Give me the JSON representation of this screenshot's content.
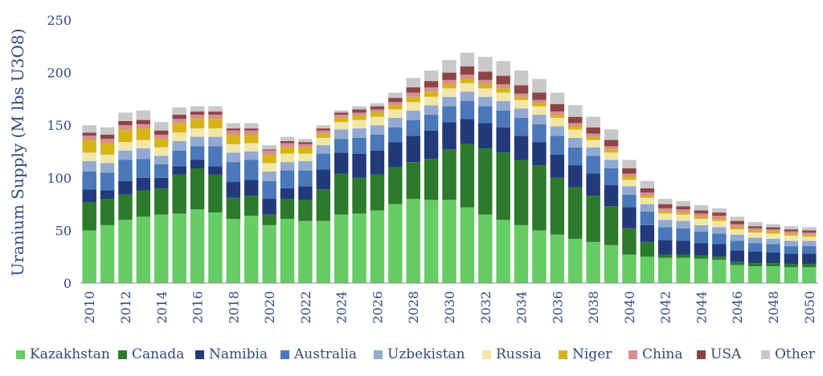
{
  "chart_data": {
    "type": "bar",
    "stacked": true,
    "title": "",
    "xlabel": "",
    "ylabel": "Uranium Supply (M lbs U3O8)",
    "ylim": [
      0,
      250
    ],
    "yticks": [
      "0",
      "50",
      "100",
      "150",
      "200",
      "250"
    ],
    "grid": false,
    "legend_position": "bottom",
    "categories": [
      "2010",
      "2011",
      "2012",
      "2013",
      "2014",
      "2015",
      "2016",
      "2017",
      "2018",
      "2019",
      "2020",
      "2021",
      "2022",
      "2023",
      "2024",
      "2025",
      "2026",
      "2027",
      "2028",
      "2029",
      "2030",
      "2031",
      "2032",
      "2033",
      "2034",
      "2035",
      "2036",
      "2037",
      "2038",
      "2039",
      "2040",
      "2041",
      "2042",
      "2043",
      "2044",
      "2045",
      "2046",
      "2047",
      "2048",
      "2049",
      "2050"
    ],
    "xtick_labels": [
      "2010",
      "2012",
      "2014",
      "2016",
      "2018",
      "2020",
      "2022",
      "2024",
      "2026",
      "2028",
      "2030",
      "2032",
      "2034",
      "2036",
      "2038",
      "2040",
      "2042",
      "2044",
      "2046",
      "2048",
      "2050"
    ],
    "series": [
      {
        "name": "Kazakhstan",
        "color": "#66cc66",
        "values": [
          50,
          55,
          60,
          63,
          65,
          66,
          70,
          67,
          61,
          64,
          55,
          61,
          59,
          59,
          65,
          66,
          69,
          75,
          80,
          79,
          79,
          72,
          65,
          60,
          55,
          50,
          46,
          42,
          39,
          36,
          27,
          25,
          24,
          24,
          23,
          22,
          17,
          16,
          16,
          15,
          15
        ]
      },
      {
        "name": "Canada",
        "color": "#2d7a2d",
        "values": [
          27,
          25,
          24,
          25,
          25,
          37,
          39,
          36,
          20,
          19,
          10,
          19,
          20,
          30,
          39,
          34,
          34,
          35,
          35,
          39,
          48,
          60,
          63,
          64,
          62,
          62,
          54,
          49,
          44,
          37,
          25,
          14,
          3,
          3,
          3,
          3,
          3,
          3,
          3,
          3,
          3
        ]
      },
      {
        "name": "Namibia",
        "color": "#223a7a",
        "values": [
          12,
          8,
          13,
          12,
          10,
          8,
          8,
          8,
          15,
          15,
          15,
          10,
          13,
          19,
          20,
          23,
          23,
          24,
          25,
          27,
          26,
          24,
          24,
          24,
          23,
          22,
          22,
          21,
          21,
          20,
          20,
          16,
          14,
          13,
          12,
          12,
          11,
          11,
          10,
          10,
          10
        ]
      },
      {
        "name": "Australia",
        "color": "#4a78b8",
        "values": [
          17,
          17,
          20,
          18,
          13,
          15,
          13,
          19,
          19,
          19,
          17,
          17,
          15,
          15,
          13,
          15,
          15,
          14,
          15,
          15,
          15,
          17,
          16,
          16,
          17,
          17,
          18,
          17,
          17,
          16,
          12,
          13,
          12,
          12,
          11,
          10,
          9,
          8,
          8,
          7,
          7
        ]
      },
      {
        "name": "Uzbekistan",
        "color": "#92aad0",
        "values": [
          10,
          9,
          9,
          10,
          8,
          9,
          9,
          9,
          9,
          8,
          9,
          8,
          9,
          8,
          9,
          9,
          9,
          9,
          9,
          9,
          9,
          9,
          9,
          9,
          9,
          9,
          9,
          9,
          8,
          8,
          8,
          7,
          7,
          7,
          6,
          6,
          6,
          5,
          5,
          5,
          5
        ]
      },
      {
        "name": "Russia",
        "color": "#f2e6a6",
        "values": [
          8,
          8,
          8,
          8,
          8,
          8,
          8,
          8,
          8,
          8,
          8,
          8,
          7,
          7,
          7,
          8,
          8,
          8,
          8,
          8,
          8,
          8,
          8,
          8,
          8,
          8,
          8,
          8,
          7,
          7,
          6,
          6,
          6,
          6,
          6,
          6,
          5,
          5,
          5,
          5,
          4
        ]
      },
      {
        "name": "Niger",
        "color": "#d6b417",
        "values": [
          12,
          11,
          12,
          11,
          8,
          9,
          9,
          9,
          9,
          8,
          8,
          6,
          6,
          4,
          4,
          4,
          4,
          4,
          5,
          5,
          4,
          4,
          4,
          4,
          3,
          3,
          3,
          3,
          3,
          3,
          3,
          2,
          2,
          2,
          2,
          2,
          2,
          2,
          2,
          2,
          2
        ]
      },
      {
        "name": "China",
        "color": "#d88f8f",
        "values": [
          4,
          4,
          4,
          4,
          4,
          4,
          4,
          4,
          4,
          4,
          4,
          4,
          3,
          3,
          3,
          3,
          3,
          3,
          4,
          4,
          4,
          4,
          4,
          4,
          3,
          3,
          3,
          3,
          3,
          3,
          3,
          3,
          3,
          3,
          3,
          3,
          3,
          2,
          2,
          2,
          2
        ]
      },
      {
        "name": "USA",
        "color": "#8c4545",
        "values": [
          3,
          4,
          4,
          4,
          4,
          4,
          3,
          3,
          2,
          2,
          1,
          2,
          2,
          2,
          2,
          3,
          3,
          4,
          5,
          6,
          7,
          8,
          8,
          8,
          8,
          7,
          7,
          6,
          6,
          6,
          5,
          4,
          4,
          3,
          3,
          3,
          3,
          2,
          2,
          2,
          2
        ]
      },
      {
        "name": "Other",
        "color": "#c8c8c8",
        "values": [
          7,
          7,
          8,
          9,
          8,
          7,
          5,
          5,
          5,
          5,
          4,
          4,
          3,
          3,
          2,
          3,
          3,
          5,
          9,
          10,
          12,
          13,
          14,
          14,
          14,
          13,
          11,
          11,
          10,
          10,
          8,
          7,
          5,
          5,
          5,
          4,
          4,
          4,
          3,
          3,
          3
        ]
      }
    ]
  }
}
